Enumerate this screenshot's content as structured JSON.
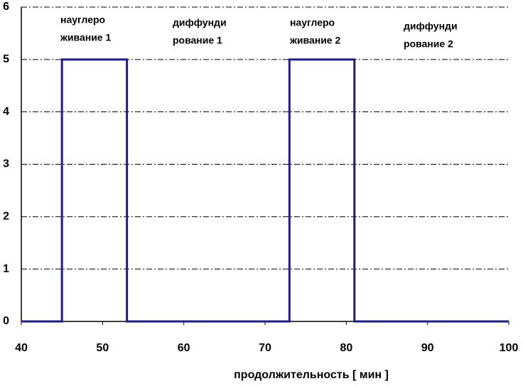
{
  "chart_data": {
    "type": "line",
    "x_label": "продолжительность [ мин ]",
    "x": [
      40,
      45,
      45,
      53,
      53,
      73,
      73,
      81,
      81,
      100
    ],
    "series": [
      {
        "color": "#1c1c8a",
        "values": [
          0,
          0,
          5,
          5,
          0,
          0,
          5,
          5,
          0,
          0
        ]
      }
    ],
    "xlim": [
      40,
      100
    ],
    "xticks": [
      40,
      50,
      60,
      70,
      80,
      90,
      100
    ],
    "ylim": [
      0,
      6
    ],
    "yticks": [
      0,
      1,
      2,
      3,
      4,
      5,
      6
    ],
    "grid": true,
    "annotations": [
      {
        "lines": [
          "науглеро",
          "живание 1"
        ]
      },
      {
        "lines": [
          "диффунди",
          "рование 1"
        ]
      },
      {
        "lines": [
          "науглеро",
          "живание 2"
        ]
      },
      {
        "lines": [
          "диффунди",
          "рование 2"
        ]
      }
    ]
  }
}
